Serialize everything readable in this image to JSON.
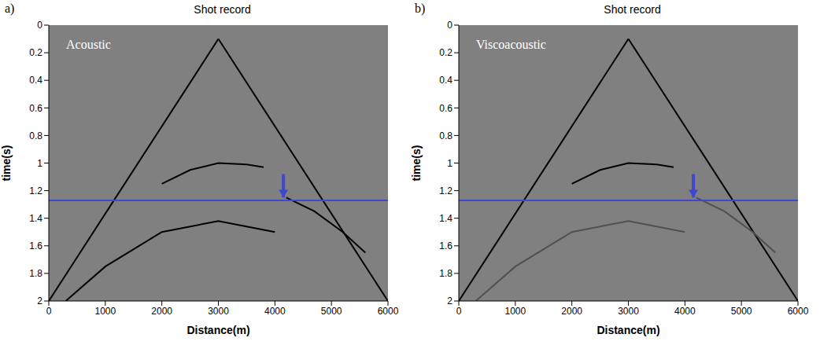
{
  "chart_data": [
    {
      "type": "line",
      "panel": "a)",
      "title": "Shot record",
      "annotation": "Acoustic",
      "x_label": "Distance(m)",
      "y_label": "time(s)",
      "xlim": [
        0,
        6000
      ],
      "xticks": [
        0,
        1000,
        2000,
        3000,
        4000,
        5000,
        6000
      ],
      "ylim": [
        2,
        0
      ],
      "yticks": [
        0,
        0.2,
        0.4,
        0.6,
        0.8,
        1,
        1.2,
        1.4,
        1.6,
        1.8,
        2
      ],
      "grid": false,
      "series": [
        {
          "color": "#000000",
          "x": [
            3000,
            0
          ],
          "values": [
            0.1,
            2.0
          ]
        },
        {
          "color": "#000000",
          "x": [
            3000,
            6000
          ],
          "values": [
            0.1,
            2.0
          ]
        },
        {
          "color": "#000000",
          "x": [
            2000,
            2500,
            3000,
            3500,
            3800
          ],
          "values": [
            1.15,
            1.05,
            1.0,
            1.01,
            1.03
          ]
        },
        {
          "color": "#000000",
          "x": [
            300,
            1000,
            2000,
            3000,
            4000
          ],
          "values": [
            2.0,
            1.75,
            1.5,
            1.42,
            1.5
          ]
        },
        {
          "color": "#000000",
          "x": [
            4200,
            4700,
            5200,
            5600
          ],
          "values": [
            1.25,
            1.35,
            1.5,
            1.65
          ]
        },
        {
          "color": "#3f48cc",
          "x": [
            0,
            6000
          ],
          "values": [
            1.27,
            1.27
          ]
        },
        {
          "color": "#3f48cc",
          "x": [
            4150,
            4150
          ],
          "values": [
            1.08,
            1.25
          ],
          "marker": "arrow"
        }
      ]
    },
    {
      "type": "line",
      "panel": "b)",
      "title": "Shot record",
      "annotation": "Viscoacoustic",
      "x_label": "Distance(m)",
      "y_label": "time(s)",
      "xlim": [
        0,
        6000
      ],
      "xticks": [
        0,
        1000,
        2000,
        3000,
        4000,
        5000,
        6000
      ],
      "ylim": [
        2,
        0
      ],
      "yticks": [
        0,
        0.2,
        0.4,
        0.6,
        0.8,
        1,
        1.2,
        1.4,
        1.6,
        1.8,
        2
      ],
      "grid": false,
      "series": [
        {
          "color": "#000000",
          "x": [
            3000,
            0
          ],
          "values": [
            0.1,
            2.0
          ]
        },
        {
          "color": "#000000",
          "x": [
            3000,
            6000
          ],
          "values": [
            0.1,
            2.0
          ]
        },
        {
          "color": "#000000",
          "x": [
            2000,
            2500,
            3000,
            3500,
            3800
          ],
          "values": [
            1.15,
            1.05,
            1.0,
            1.01,
            1.03
          ]
        },
        {
          "color": "#505050",
          "x": [
            300,
            1000,
            2000,
            3000,
            4000
          ],
          "values": [
            2.0,
            1.75,
            1.5,
            1.42,
            1.5
          ]
        },
        {
          "color": "#505050",
          "x": [
            4200,
            4700,
            5200,
            5600
          ],
          "values": [
            1.25,
            1.35,
            1.5,
            1.65
          ]
        },
        {
          "color": "#3f48cc",
          "x": [
            0,
            6000
          ],
          "values": [
            1.27,
            1.27
          ]
        },
        {
          "color": "#3f48cc",
          "x": [
            4150,
            4150
          ],
          "values": [
            1.08,
            1.25
          ],
          "marker": "arrow"
        }
      ]
    }
  ]
}
